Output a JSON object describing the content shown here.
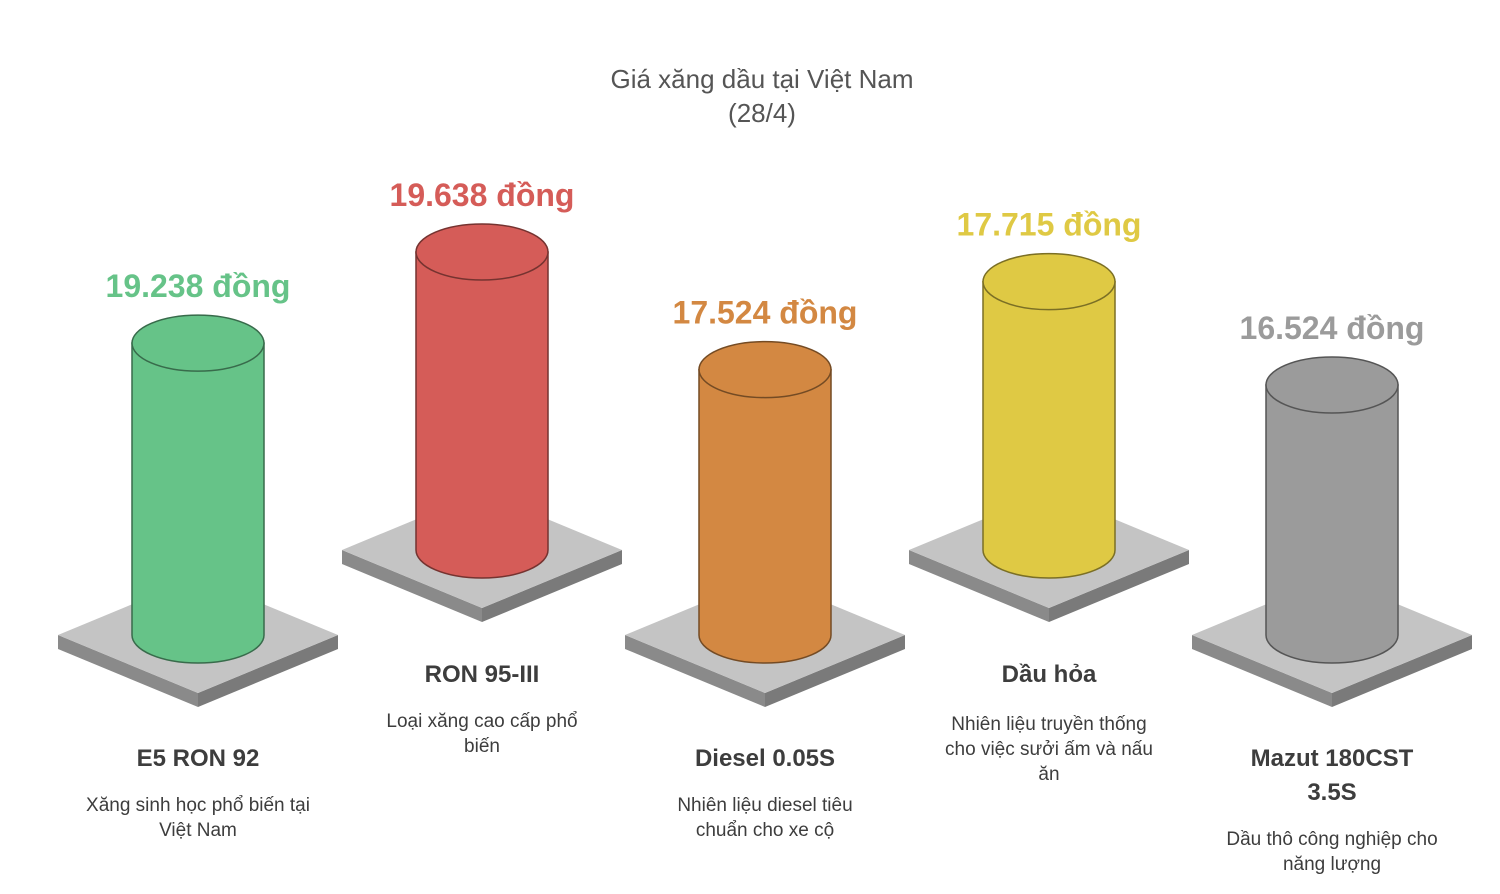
{
  "chart_data": {
    "type": "bar",
    "title": "Giá xăng dầu tại Việt Nam",
    "subtitle": "(28/4)",
    "unit": "đồng",
    "categories": [
      "E5 RON 92",
      "RON 95-III",
      "Diesel 0.05S",
      "Dầu hỏa",
      "Mazut 180CST 3.5S"
    ],
    "values": [
      19238,
      19638,
      17524,
      17715,
      16524
    ],
    "value_labels": [
      "19.238 đồng",
      "19.638 đồng",
      "17.524 đồng",
      "17.715 đồng",
      "16.524 đồng"
    ],
    "descriptions": [
      "Xăng sinh học phổ biến tại Việt Nam",
      "Loại xăng cao cấp phổ biến",
      "Nhiên liệu diesel tiêu chuẩn cho xe cộ",
      "Nhiên liệu truyền thống cho việc sưởi ấm và nấu ăn",
      "Dầu thô công nghiệp cho năng lượng"
    ],
    "colors": [
      "#66c388",
      "#d55c58",
      "#d38842",
      "#dfc944",
      "#9b9b9b"
    ],
    "label_colors": [
      "#66c388",
      "#d55c58",
      "#d38842",
      "#dfc944",
      "#9b9b9b"
    ],
    "grid": false
  }
}
